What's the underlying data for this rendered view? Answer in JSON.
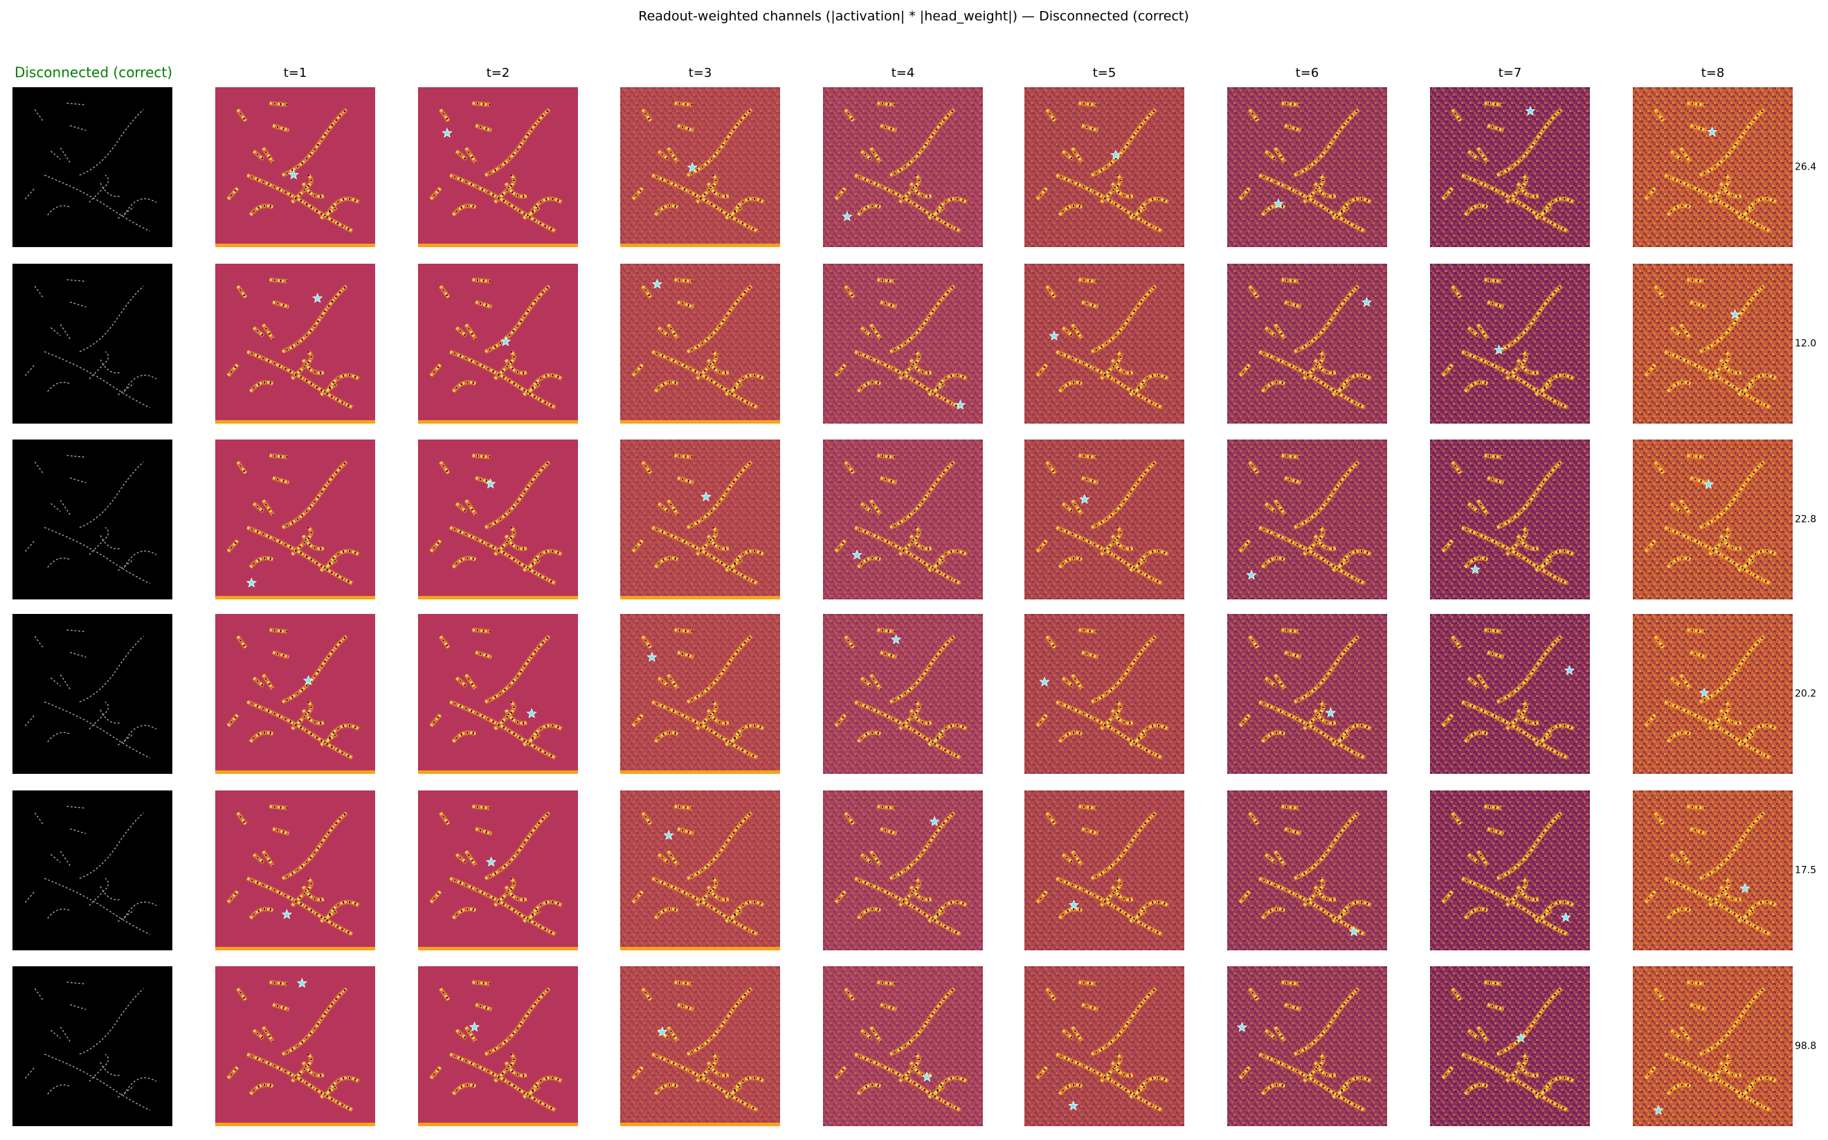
{
  "title": "Readout-weighted channels (|activation| * |head_weight|) — Disconnected (correct)",
  "input_label": "Disconnected (correct)",
  "columns": [
    "t=1",
    "t=2",
    "t=3",
    "t=4",
    "t=5",
    "t=6",
    "t=7",
    "t=8"
  ],
  "row_labels": [
    "26.4",
    "12.0",
    "22.8",
    "20.2",
    "17.5",
    "98.8"
  ]
}
